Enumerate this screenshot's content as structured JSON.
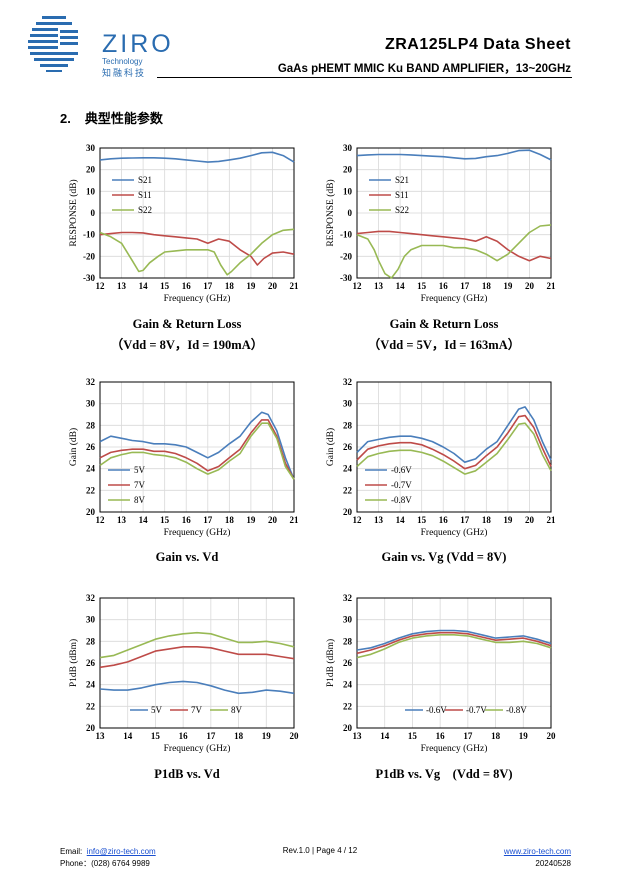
{
  "header": {
    "brand": "ZIRO",
    "brand_sub": "Technology",
    "brand_cn": "知融科技",
    "title": "ZRA125LP4  Data  Sheet",
    "subtitle": "GaAs pHEMT MMIC Ku BAND AMPLIFIER，13~20GHz"
  },
  "section": {
    "number": "2.",
    "title": "典型性能参数"
  },
  "captions": {
    "c1_line1": "Gain & Return Loss",
    "c1_line2": "（Vdd = 8V，Id = 190mA）",
    "c2_line1": "Gain & Return Loss",
    "c2_line2": "（Vdd = 5V，Id = 163mA）",
    "c3": "Gain vs. Vd",
    "c4": "Gain vs. Vg (Vdd = 8V)",
    "c5": "P1dB vs. Vd",
    "c6": "P1dB vs. Vg    (Vdd = 8V)"
  },
  "footer": {
    "email_label": "Email:",
    "email": "info@ziro-tech.com",
    "phone_label": "Phone：",
    "phone": "(028) 6764 9989",
    "rev": "Rev.1.0 | Page 4 / 12",
    "website": "www.ziro-tech.com",
    "date": "20240528"
  },
  "colors": {
    "blue": "#4a7ebb",
    "red": "#be4b48",
    "green": "#98b954",
    "grid": "#d9d9d9",
    "brand": "#2a6cb0"
  },
  "chart_data": [
    {
      "id": "c1",
      "type": "line",
      "title": "Gain & Return Loss",
      "xlabel": "Frequency (GHz)",
      "ylabel": "RESPONSE (dB)",
      "xlim": [
        12,
        21
      ],
      "ylim": [
        -30,
        30
      ],
      "xticks": [
        12,
        13,
        14,
        15,
        16,
        17,
        18,
        19,
        20,
        21
      ],
      "yticks": [
        -30,
        -20,
        -10,
        0,
        10,
        20,
        30
      ],
      "legend": "left",
      "series": [
        {
          "name": "S21",
          "color": "#4a7ebb",
          "x": [
            12,
            12.5,
            13,
            13.5,
            14,
            14.5,
            15,
            15.5,
            16,
            16.5,
            17,
            17.5,
            18,
            18.5,
            19,
            19.5,
            20,
            20.5,
            21
          ],
          "y": [
            24.5,
            25,
            25.3,
            25.4,
            25.5,
            25.5,
            25.3,
            25,
            24.5,
            24,
            23.5,
            23.8,
            24.5,
            25.3,
            26.5,
            27.8,
            28,
            26.5,
            23.5
          ]
        },
        {
          "name": "S11",
          "color": "#be4b48",
          "x": [
            12,
            12.5,
            13,
            13.5,
            14,
            14.5,
            15,
            15.5,
            16,
            16.5,
            17,
            17.5,
            18,
            18.5,
            19,
            19.3,
            19.6,
            20,
            20.5,
            21
          ],
          "y": [
            -10,
            -9.5,
            -9,
            -9,
            -9.2,
            -10,
            -10.5,
            -11,
            -11.5,
            -12,
            -14,
            -12,
            -13,
            -17,
            -20,
            -24,
            -21,
            -18.5,
            -18,
            -19
          ]
        },
        {
          "name": "S22",
          "color": "#98b954",
          "x": [
            12,
            12.5,
            13,
            13.5,
            13.8,
            14,
            14.3,
            14.7,
            15,
            15.5,
            16,
            16.5,
            17,
            17.3,
            17.6,
            17.9,
            18.1,
            18.5,
            19,
            19.5,
            20,
            20.5,
            21
          ],
          "y": [
            -9,
            -11,
            -14,
            -22,
            -27,
            -26.5,
            -23,
            -20,
            -18,
            -17.5,
            -17,
            -17,
            -17,
            -18,
            -24,
            -28.5,
            -27,
            -23,
            -19,
            -14,
            -10,
            -8,
            -7.5
          ]
        }
      ]
    },
    {
      "id": "c2",
      "type": "line",
      "title": "Gain & Return Loss",
      "xlabel": "Frequency (GHz)",
      "ylabel": "RESPONSE (dB)",
      "xlim": [
        12,
        21
      ],
      "ylim": [
        -30,
        30
      ],
      "xticks": [
        12,
        13,
        14,
        15,
        16,
        17,
        18,
        19,
        20,
        21
      ],
      "yticks": [
        -30,
        -20,
        -10,
        0,
        10,
        20,
        30
      ],
      "legend": "left",
      "series": [
        {
          "name": "S21",
          "color": "#4a7ebb",
          "x": [
            12,
            12.5,
            13,
            13.5,
            14,
            14.5,
            15,
            15.5,
            16,
            16.5,
            17,
            17.5,
            18,
            18.5,
            19,
            19.5,
            20,
            20.5,
            21
          ],
          "y": [
            26.5,
            26.8,
            27,
            27,
            27,
            26.8,
            26.5,
            26.2,
            26,
            25.5,
            25,
            25.2,
            26,
            26.5,
            27.5,
            28.8,
            29,
            27,
            24.5
          ]
        },
        {
          "name": "S11",
          "color": "#be4b48",
          "x": [
            12,
            12.5,
            13,
            13.5,
            14,
            14.5,
            15,
            15.5,
            16,
            16.5,
            17,
            17.5,
            18,
            18.5,
            19,
            19.5,
            20,
            20.5,
            21
          ],
          "y": [
            -9.5,
            -9,
            -8.5,
            -8.5,
            -9,
            -9.5,
            -10,
            -10.5,
            -11,
            -11.5,
            -12,
            -13,
            -11,
            -13,
            -17,
            -20,
            -22,
            -20,
            -21
          ]
        },
        {
          "name": "S22",
          "color": "#98b954",
          "x": [
            12,
            12.5,
            12.8,
            13,
            13.3,
            13.6,
            13.9,
            14.2,
            14.5,
            15,
            15.5,
            16,
            16.5,
            17,
            17.5,
            18,
            18.5,
            19,
            19.5,
            20,
            20.5,
            21
          ],
          "y": [
            -10,
            -12,
            -17,
            -22,
            -28,
            -30,
            -26,
            -20,
            -17,
            -15,
            -15,
            -15,
            -16,
            -16,
            -17,
            -19,
            -22,
            -19,
            -14,
            -9,
            -6,
            -5.5
          ]
        }
      ]
    },
    {
      "id": "c3",
      "type": "line",
      "title": "Gain vs. Vd",
      "xlabel": "Frequency (GHz)",
      "ylabel": "Gain (dB)",
      "xlim": [
        12,
        21
      ],
      "ylim": [
        20,
        32
      ],
      "xticks": [
        12,
        13,
        14,
        15,
        16,
        17,
        18,
        19,
        20,
        21
      ],
      "yticks": [
        20,
        22,
        24,
        26,
        28,
        30,
        32
      ],
      "legend": "bottom-left",
      "series": [
        {
          "name": "5V",
          "color": "#4a7ebb",
          "x": [
            12,
            12.5,
            13,
            13.5,
            14,
            14.5,
            15,
            15.5,
            16,
            16.5,
            17,
            17.5,
            18,
            18.5,
            19,
            19.5,
            19.8,
            20.2,
            20.6,
            21
          ],
          "y": [
            26.5,
            27,
            26.8,
            26.6,
            26.5,
            26.3,
            26.3,
            26.2,
            26,
            25.5,
            25,
            25.5,
            26.3,
            27,
            28.3,
            29.2,
            29,
            27.5,
            25,
            23
          ]
        },
        {
          "name": "7V",
          "color": "#be4b48",
          "x": [
            12,
            12.5,
            13,
            13.5,
            14,
            14.5,
            15,
            15.5,
            16,
            16.5,
            17,
            17.5,
            18,
            18.5,
            19,
            19.5,
            19.8,
            20.2,
            20.6,
            21
          ],
          "y": [
            25,
            25.5,
            25.7,
            25.8,
            25.8,
            25.6,
            25.6,
            25.4,
            25,
            24.5,
            23.8,
            24.2,
            25,
            25.8,
            27.3,
            28.5,
            28.5,
            27,
            24.5,
            23
          ]
        },
        {
          "name": "8V",
          "color": "#98b954",
          "x": [
            12,
            12.5,
            13,
            13.5,
            14,
            14.5,
            15,
            15.5,
            16,
            16.5,
            17,
            17.5,
            18,
            18.5,
            19,
            19.5,
            19.8,
            20.2,
            20.6,
            21
          ],
          "y": [
            24.3,
            25,
            25.3,
            25.5,
            25.5,
            25.3,
            25.2,
            25,
            24.6,
            24,
            23.5,
            23.9,
            24.7,
            25.4,
            27,
            28.2,
            28.2,
            26.8,
            24.2,
            23
          ]
        }
      ]
    },
    {
      "id": "c4",
      "type": "line",
      "title": "Gain vs. Vg (Vdd = 8V)",
      "xlabel": "Frequency (GHz)",
      "ylabel": "Gain (dB)",
      "xlim": [
        12,
        21
      ],
      "ylim": [
        20,
        32
      ],
      "xticks": [
        12,
        13,
        14,
        15,
        16,
        17,
        18,
        19,
        20,
        21
      ],
      "yticks": [
        20,
        22,
        24,
        26,
        28,
        30,
        32
      ],
      "legend": "bottom-left",
      "series": [
        {
          "name": "-0.6V",
          "color": "#4a7ebb",
          "x": [
            12,
            12.5,
            13,
            13.5,
            14,
            14.5,
            15,
            15.5,
            16,
            16.5,
            17,
            17.5,
            18,
            18.5,
            19,
            19.5,
            19.8,
            20.2,
            20.6,
            21
          ],
          "y": [
            25.5,
            26.5,
            26.7,
            26.9,
            27,
            27,
            26.8,
            26.5,
            26,
            25.4,
            24.6,
            24.9,
            25.8,
            26.5,
            28,
            29.5,
            29.7,
            28.5,
            26.5,
            24.8
          ]
        },
        {
          "name": "-0.7V",
          "color": "#be4b48",
          "x": [
            12,
            12.5,
            13,
            13.5,
            14,
            14.5,
            15,
            15.5,
            16,
            16.5,
            17,
            17.5,
            18,
            18.5,
            19,
            19.5,
            19.8,
            20.2,
            20.6,
            21
          ],
          "y": [
            24.8,
            25.8,
            26.1,
            26.3,
            26.4,
            26.4,
            26.2,
            25.8,
            25.3,
            24.7,
            24,
            24.3,
            25.2,
            26,
            27.3,
            28.8,
            28.9,
            27.8,
            25.9,
            24.2
          ]
        },
        {
          "name": "-0.8V",
          "color": "#98b954",
          "x": [
            12,
            12.5,
            13,
            13.5,
            14,
            14.5,
            15,
            15.5,
            16,
            16.5,
            17,
            17.5,
            18,
            18.5,
            19,
            19.5,
            19.8,
            20.2,
            20.6,
            21
          ],
          "y": [
            24.2,
            25.1,
            25.4,
            25.6,
            25.7,
            25.7,
            25.5,
            25.2,
            24.7,
            24.1,
            23.5,
            23.8,
            24.6,
            25.4,
            26.7,
            28.1,
            28.2,
            27.2,
            25.3,
            23.8
          ]
        }
      ]
    },
    {
      "id": "c5",
      "type": "line",
      "title": "P1dB vs. Vd",
      "xlabel": "Frequency (GHz)",
      "ylabel": "P1dB (dBm)",
      "xlim": [
        13,
        20
      ],
      "ylim": [
        20,
        32
      ],
      "xticks": [
        13,
        14,
        15,
        16,
        17,
        18,
        19,
        20
      ],
      "yticks": [
        20,
        22,
        24,
        26,
        28,
        30,
        32
      ],
      "legend": "bottom-inline",
      "series": [
        {
          "name": "5V",
          "color": "#4a7ebb",
          "x": [
            13,
            13.5,
            14,
            14.5,
            15,
            15.5,
            16,
            16.5,
            17,
            17.5,
            18,
            18.5,
            19,
            19.5,
            20
          ],
          "y": [
            23.6,
            23.5,
            23.5,
            23.7,
            24,
            24.2,
            24.3,
            24.2,
            23.9,
            23.5,
            23.2,
            23.3,
            23.5,
            23.4,
            23.2
          ]
        },
        {
          "name": "7V",
          "color": "#be4b48",
          "x": [
            13,
            13.5,
            14,
            14.5,
            15,
            15.5,
            16,
            16.5,
            17,
            17.5,
            18,
            18.5,
            19,
            19.5,
            20
          ],
          "y": [
            25.6,
            25.8,
            26.1,
            26.6,
            27.1,
            27.3,
            27.5,
            27.5,
            27.4,
            27.1,
            26.8,
            26.8,
            26.8,
            26.6,
            26.4
          ]
        },
        {
          "name": "8V",
          "color": "#98b954",
          "x": [
            13,
            13.5,
            14,
            14.5,
            15,
            15.5,
            16,
            16.5,
            17,
            17.5,
            18,
            18.5,
            19,
            19.5,
            20
          ],
          "y": [
            26.5,
            26.7,
            27.2,
            27.7,
            28.2,
            28.5,
            28.7,
            28.8,
            28.7,
            28.3,
            27.9,
            27.9,
            28,
            27.8,
            27.5
          ]
        }
      ]
    },
    {
      "id": "c6",
      "type": "line",
      "title": "P1dB vs. Vg (Vdd = 8V)",
      "xlabel": "Frequency (GHz)",
      "ylabel": "P1dB (dBm)",
      "xlim": [
        13,
        20
      ],
      "ylim": [
        20,
        32
      ],
      "xticks": [
        13,
        14,
        15,
        16,
        17,
        18,
        19,
        20
      ],
      "yticks": [
        20,
        22,
        24,
        26,
        28,
        30,
        32
      ],
      "legend": "bottom-inline",
      "series": [
        {
          "name": "-0.6V",
          "color": "#4a7ebb",
          "x": [
            13,
            13.5,
            14,
            14.5,
            15,
            15.5,
            16,
            16.5,
            17,
            17.5,
            18,
            18.5,
            19,
            19.5,
            20
          ],
          "y": [
            27.2,
            27.4,
            27.8,
            28.3,
            28.7,
            28.9,
            29,
            29,
            28.9,
            28.6,
            28.3,
            28.4,
            28.5,
            28.2,
            27.8
          ]
        },
        {
          "name": "-0.7V",
          "color": "#be4b48",
          "x": [
            13,
            13.5,
            14,
            14.5,
            15,
            15.5,
            16,
            16.5,
            17,
            17.5,
            18,
            18.5,
            19,
            19.5,
            20
          ],
          "y": [
            26.9,
            27.2,
            27.6,
            28.1,
            28.5,
            28.7,
            28.8,
            28.8,
            28.7,
            28.4,
            28.1,
            28.2,
            28.3,
            28,
            27.6
          ]
        },
        {
          "name": "-0.8V",
          "color": "#98b954",
          "x": [
            13,
            13.5,
            14,
            14.5,
            15,
            15.5,
            16,
            16.5,
            17,
            17.5,
            18,
            18.5,
            19,
            19.5,
            20
          ],
          "y": [
            26.5,
            26.8,
            27.3,
            27.9,
            28.3,
            28.5,
            28.6,
            28.6,
            28.5,
            28.2,
            27.9,
            27.9,
            28,
            27.8,
            27.4
          ]
        }
      ]
    }
  ]
}
